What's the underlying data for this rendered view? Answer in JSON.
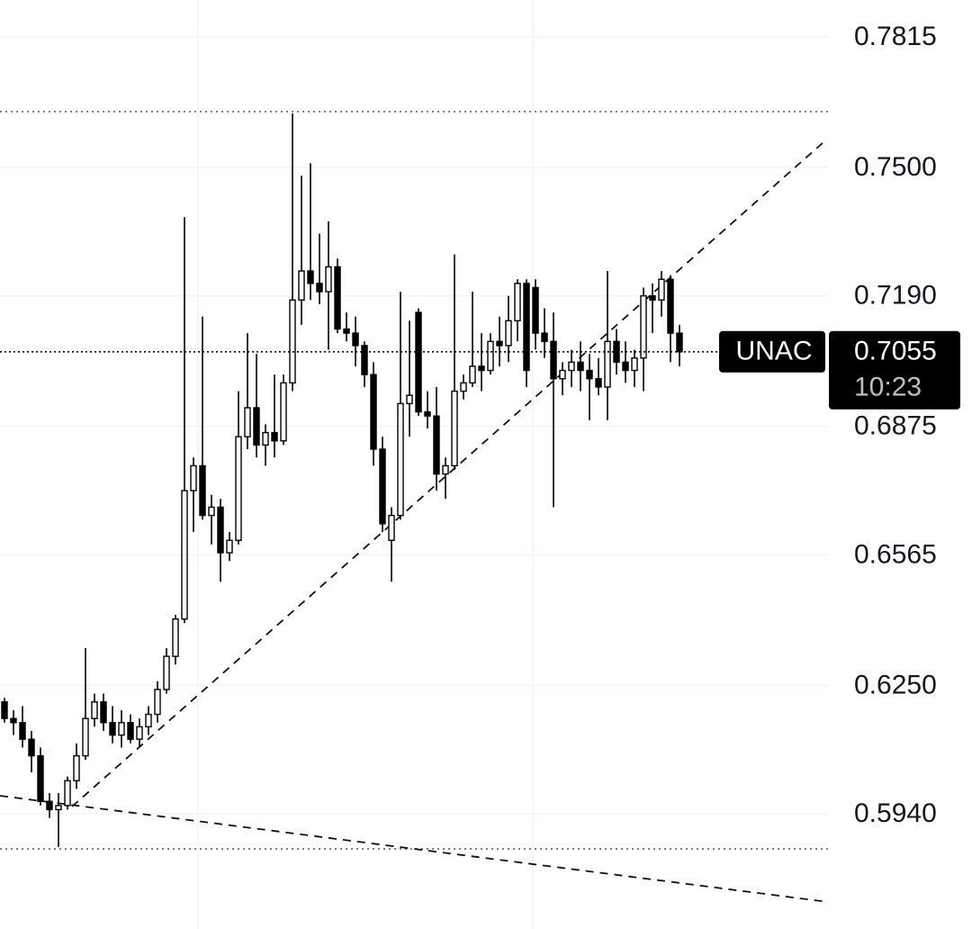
{
  "chart_data": {
    "type": "candlestick",
    "ylim": [
      0.5662,
      0.7904
    ],
    "yticks": [
      0.7815,
      {
        "value": 0.75,
        "label": "0.7500"
      },
      {
        "value": 0.719,
        "label": "0.7190"
      },
      0.6875,
      0.6565,
      {
        "value": 0.625,
        "label": "0.6250"
      },
      {
        "value": 0.594,
        "label": "0.5940"
      }
    ],
    "grid": true,
    "up_color": "#ffffff",
    "down_color": "#000000",
    "open": [
      0.621,
      0.617,
      0.616,
      0.612,
      0.608,
      0.597,
      0.595,
      0.596,
      0.602,
      0.608,
      0.617,
      0.621,
      0.616,
      0.613,
      0.616,
      0.612,
      0.615,
      0.618,
      0.624,
      0.632,
      0.641,
      0.672,
      0.678,
      0.666,
      0.668,
      0.657,
      0.66,
      0.685,
      0.692,
      0.683,
      0.686,
      0.684,
      0.698,
      0.718,
      0.725,
      0.722,
      0.72,
      0.726,
      0.711,
      0.71,
      0.707,
      0.7,
      0.682,
      0.66,
      0.666,
      0.693,
      0.715,
      0.691,
      0.69,
      0.676,
      0.678,
      0.696,
      0.698,
      0.702,
      0.701,
      0.708,
      0.707,
      0.713,
      0.722,
      0.721,
      0.71,
      0.708,
      0.699,
      0.701,
      0.703,
      0.701,
      0.699,
      0.697,
      0.708,
      0.703,
      0.701,
      0.704,
      0.719,
      0.718,
      0.723,
      0.71
    ],
    "high": [
      0.622,
      0.619,
      0.62,
      0.614,
      0.61,
      0.599,
      0.599,
      0.603,
      0.611,
      0.634,
      0.623,
      0.623,
      0.62,
      0.619,
      0.618,
      0.617,
      0.62,
      0.626,
      0.634,
      0.642,
      0.738,
      0.68,
      0.714,
      0.671,
      0.67,
      0.662,
      0.696,
      0.71,
      0.705,
      0.688,
      0.7,
      0.7,
      0.763,
      0.748,
      0.751,
      0.734,
      0.737,
      0.728,
      0.715,
      0.714,
      0.708,
      0.703,
      0.685,
      0.668,
      0.72,
      0.713,
      0.716,
      0.696,
      0.697,
      0.68,
      0.729,
      0.7,
      0.72,
      0.71,
      0.71,
      0.714,
      0.719,
      0.723,
      0.723,
      0.723,
      0.716,
      0.715,
      0.703,
      0.706,
      0.708,
      0.705,
      0.704,
      0.725,
      0.711,
      0.708,
      0.706,
      0.721,
      0.722,
      0.725,
      0.724,
      0.712
    ],
    "low": [
      0.616,
      0.613,
      0.61,
      0.604,
      0.596,
      0.593,
      0.586,
      0.595,
      0.6,
      0.607,
      0.615,
      0.614,
      0.611,
      0.61,
      0.611,
      0.61,
      0.613,
      0.616,
      0.623,
      0.63,
      0.64,
      0.662,
      0.665,
      0.659,
      0.65,
      0.655,
      0.659,
      0.682,
      0.68,
      0.678,
      0.68,
      0.683,
      0.696,
      0.712,
      0.718,
      0.717,
      0.706,
      0.71,
      0.708,
      0.702,
      0.697,
      0.678,
      0.662,
      0.65,
      0.665,
      0.685,
      0.69,
      0.687,
      0.672,
      0.67,
      0.677,
      0.694,
      0.697,
      0.696,
      0.7,
      0.702,
      0.703,
      0.708,
      0.697,
      0.706,
      0.704,
      0.668,
      0.695,
      0.697,
      0.696,
      0.689,
      0.695,
      0.689,
      0.7,
      0.698,
      0.697,
      0.696,
      0.71,
      0.714,
      0.703,
      0.702
    ],
    "close": [
      0.617,
      0.616,
      0.612,
      0.608,
      0.597,
      0.595,
      0.596,
      0.602,
      0.608,
      0.617,
      0.621,
      0.616,
      0.613,
      0.616,
      0.612,
      0.615,
      0.618,
      0.624,
      0.632,
      0.641,
      0.672,
      0.678,
      0.666,
      0.668,
      0.657,
      0.66,
      0.685,
      0.692,
      0.683,
      0.686,
      0.684,
      0.698,
      0.718,
      0.725,
      0.722,
      0.72,
      0.726,
      0.711,
      0.71,
      0.707,
      0.7,
      0.682,
      0.664,
      0.666,
      0.693,
      0.695,
      0.691,
      0.69,
      0.676,
      0.678,
      0.696,
      0.698,
      0.702,
      0.701,
      0.708,
      0.707,
      0.713,
      0.722,
      0.701,
      0.71,
      0.708,
      0.699,
      0.701,
      0.703,
      0.701,
      0.699,
      0.697,
      0.708,
      0.703,
      0.701,
      0.704,
      0.719,
      0.718,
      0.723,
      0.71,
      0.7055
    ],
    "last_price": {
      "symbol": "UNAC",
      "price": 0.7055,
      "countdown": "10:23"
    }
  }
}
